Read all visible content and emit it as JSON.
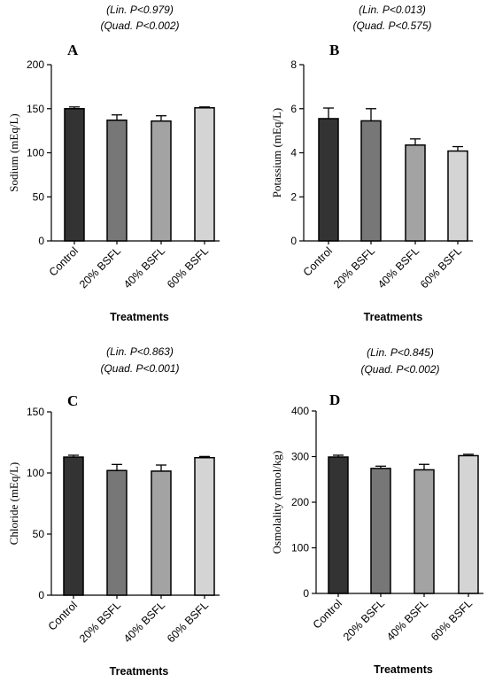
{
  "chart_data": [
    {
      "type": "bar",
      "panel": "A",
      "stats": [
        "(Lin. P<0.979)",
        "(Quad. P<0.002)"
      ],
      "categories": [
        "Control",
        "20% BSFL",
        "40% BSFL",
        "60% BSFL"
      ],
      "values": [
        150,
        137,
        136,
        151
      ],
      "errors": [
        2,
        6,
        6,
        1
      ],
      "ylabel": "Sodium (mEq/L)",
      "xlabel": "Treatments",
      "ylim": [
        0,
        200
      ],
      "yticks": [
        0,
        50,
        100,
        150,
        200
      ],
      "colors": [
        "#333333",
        "#777777",
        "#a3a3a3",
        "#d4d4d4"
      ]
    },
    {
      "type": "bar",
      "panel": "B",
      "stats": [
        "(Lin. P<0.013)",
        "(Quad. P<0.575)"
      ],
      "categories": [
        "Control",
        "20% BSFL",
        "40% BSFL",
        "60% BSFL"
      ],
      "values": [
        5.55,
        5.45,
        4.35,
        4.08
      ],
      "errors": [
        0.48,
        0.55,
        0.28,
        0.2
      ],
      "ylabel": "Potassium (mEq/L)",
      "xlabel": "Treatments",
      "ylim": [
        0,
        8
      ],
      "yticks": [
        0,
        2,
        4,
        6,
        8
      ],
      "colors": [
        "#333333",
        "#777777",
        "#a3a3a3",
        "#d4d4d4"
      ]
    },
    {
      "type": "bar",
      "panel": "C",
      "stats": [
        "(Lin. P<0.863)",
        "(Quad. P<0.001)"
      ],
      "categories": [
        "Control",
        "20% BSFL",
        "40% BSFL",
        "60% BSFL"
      ],
      "values": [
        113,
        102,
        101.5,
        112.5
      ],
      "errors": [
        1.5,
        5,
        5,
        1
      ],
      "ylabel": "Chloride (mEq/L)",
      "xlabel": "Treatments",
      "ylim": [
        0,
        150
      ],
      "yticks": [
        0,
        50,
        100,
        150
      ],
      "colors": [
        "#333333",
        "#777777",
        "#a3a3a3",
        "#d4d4d4"
      ]
    },
    {
      "type": "bar",
      "panel": "D",
      "stats": [
        "(Lin. P<0.845)",
        "(Quad. P<0.002)"
      ],
      "categories": [
        "Control",
        "20% BSFL",
        "40% BSFL",
        "60% BSFL"
      ],
      "values": [
        299,
        274,
        271,
        302
      ],
      "errors": [
        4,
        5,
        12,
        3
      ],
      "ylabel": "Osmolality (mmol/kg)",
      "xlabel": "Treatments",
      "ylim": [
        0,
        400
      ],
      "yticks": [
        0,
        100,
        200,
        300,
        400
      ],
      "colors": [
        "#333333",
        "#777777",
        "#a3a3a3",
        "#d4d4d4"
      ]
    }
  ]
}
